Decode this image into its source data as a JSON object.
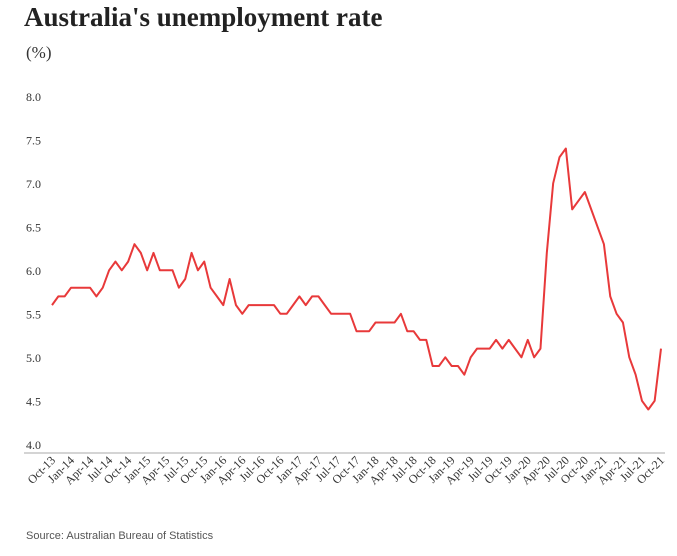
{
  "chart_data": {
    "type": "line",
    "title": "Australia's unemployment rate",
    "subtitle": "(%)",
    "source": "Source: Australian Bureau of Statistics",
    "categories": [
      "Oct-13",
      null,
      null,
      "Jan-14",
      null,
      null,
      "Apr-14",
      null,
      null,
      "Jul-14",
      null,
      null,
      "Oct-14",
      null,
      null,
      "Jan-15",
      null,
      null,
      "Apr-15",
      null,
      null,
      "Jul-15",
      null,
      null,
      "Oct-15",
      null,
      null,
      "Jan-16",
      null,
      null,
      "Apr-16",
      null,
      null,
      "Jul-16",
      null,
      null,
      "Oct-16",
      null,
      null,
      "Jan-17",
      null,
      null,
      "Apr-17",
      null,
      null,
      "Jul-17",
      null,
      null,
      "Oct-17",
      null,
      null,
      "Jan-18",
      null,
      null,
      "Apr-18",
      null,
      null,
      "Jul-18",
      null,
      null,
      "Oct-18",
      null,
      null,
      "Jan-19",
      null,
      null,
      "Apr-19",
      null,
      null,
      "Jul-19",
      null,
      null,
      "Oct-19",
      null,
      null,
      "Jan-20",
      null,
      null,
      "Apr-20",
      null,
      null,
      "Jul-20",
      null,
      null,
      "Oct-20",
      null,
      null,
      "Jan-21",
      null,
      null,
      "Apr-21",
      null,
      null,
      "Jul-21",
      null,
      null,
      "Oct-21"
    ],
    "series": [
      {
        "name": "Unemployment rate",
        "color": "#e8393a",
        "values": [
          5.7,
          5.8,
          5.8,
          5.9,
          5.9,
          5.9,
          5.9,
          5.8,
          5.9,
          6.1,
          6.2,
          6.1,
          6.2,
          6.4,
          6.3,
          6.1,
          6.3,
          6.1,
          6.1,
          6.1,
          5.9,
          6.0,
          6.3,
          6.1,
          6.2,
          5.9,
          5.8,
          5.7,
          6.0,
          5.7,
          5.6,
          5.7,
          5.7,
          5.7,
          5.7,
          5.7,
          5.6,
          5.6,
          5.7,
          5.8,
          5.7,
          5.8,
          5.8,
          5.7,
          5.6,
          5.6,
          5.6,
          5.6,
          5.4,
          5.4,
          5.4,
          5.5,
          5.5,
          5.5,
          5.5,
          5.6,
          5.4,
          5.4,
          5.3,
          5.3,
          5.0,
          5.0,
          5.1,
          5.0,
          5.0,
          4.9,
          5.1,
          5.2,
          5.2,
          5.2,
          5.3,
          5.2,
          5.3,
          5.2,
          5.1,
          5.3,
          5.1,
          5.2,
          6.3,
          7.1,
          7.4,
          7.5,
          6.8,
          6.9,
          7.0,
          6.8,
          6.6,
          6.4,
          5.8,
          5.6,
          5.5,
          5.1,
          4.9,
          4.6,
          4.5,
          4.6,
          5.2
        ]
      }
    ],
    "ylim": [
      4,
      8
    ],
    "yticks": [
      {
        "value": 4,
        "label": "4.0"
      },
      {
        "value": 4.5,
        "label": "4.5"
      },
      {
        "value": 5,
        "label": "5.0"
      },
      {
        "value": 5.5,
        "label": "5.5"
      },
      {
        "value": 6,
        "label": "6.0"
      },
      {
        "value": 6.5,
        "label": "6.5"
      },
      {
        "value": 7,
        "label": "7.0"
      },
      {
        "value": 7.5,
        "label": "7.5"
      },
      {
        "value": 8,
        "label": "8.0"
      }
    ],
    "grid": false
  }
}
